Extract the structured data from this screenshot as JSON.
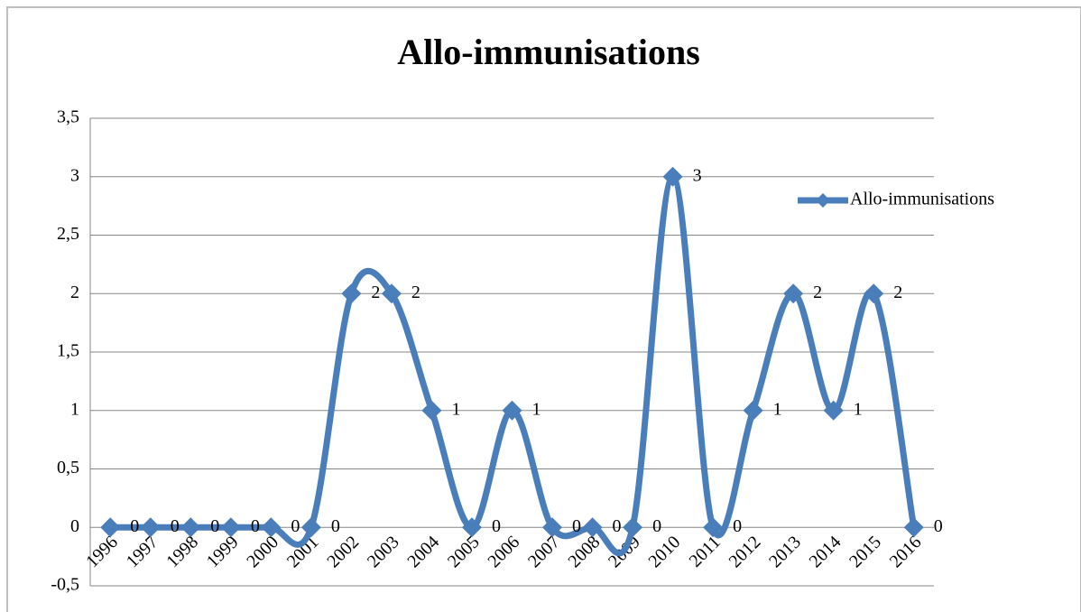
{
  "chart_data": {
    "type": "line",
    "title": "Allo-immunisations",
    "categories": [
      "1996",
      "1997",
      "1998",
      "1999",
      "2000",
      "2001",
      "2002",
      "2003",
      "2004",
      "2005",
      "2006",
      "2007",
      "2008",
      "2009",
      "2010",
      "2011",
      "2012",
      "2013",
      "2014",
      "2015",
      "2016"
    ],
    "series": [
      {
        "name": "Allo-immunisations",
        "color": "#4a7ebb",
        "values": [
          0,
          0,
          0,
          0,
          0,
          0,
          2,
          2,
          1,
          0,
          1,
          0,
          0,
          0,
          3,
          0,
          1,
          2,
          1,
          2,
          0
        ]
      }
    ],
    "ylim": [
      -0.5,
      3.5
    ],
    "yticks": [
      {
        "value": -0.5,
        "label": "-0,5"
      },
      0,
      {
        "value": 0.5,
        "label": "0,5"
      },
      1,
      {
        "value": 1.5,
        "label": "1,5"
      },
      2,
      {
        "value": 2.5,
        "label": "2,5"
      },
      3,
      {
        "value": 3.5,
        "label": "3,5"
      }
    ],
    "grid": true,
    "smooth": true,
    "legend": "right"
  }
}
